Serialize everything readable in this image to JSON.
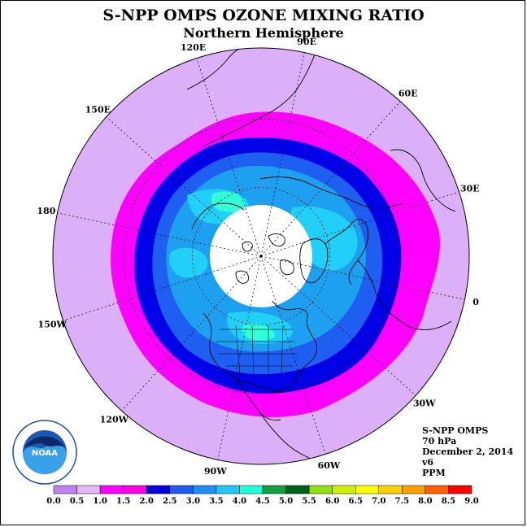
{
  "title": "S-NPP OMPS OZONE MIXING RATIO",
  "subtitle": "Northern Hemisphere",
  "longitude_labels": [
    {
      "text": "90E",
      "lon": 90
    },
    {
      "text": "60E",
      "lon": 60
    },
    {
      "text": "30E",
      "lon": 30
    },
    {
      "text": "0",
      "lon": 0
    },
    {
      "text": "30W",
      "lon": -30
    },
    {
      "text": "60W",
      "lon": -60
    },
    {
      "text": "90W",
      "lon": -90
    },
    {
      "text": "120W",
      "lon": -120
    },
    {
      "text": "150W",
      "lon": -150
    },
    {
      "text": "180",
      "lon": 180
    },
    {
      "text": "150E",
      "lon": 150
    },
    {
      "text": "120E",
      "lon": 120
    }
  ],
  "info": {
    "instrument": "S-NPP OMPS",
    "level": "70 hPa",
    "date": "December 2, 2014",
    "version": "v6",
    "units": "PPM"
  },
  "logo_text": "NOAA",
  "colorbar": {
    "ticks": [
      "0.0",
      "0.5",
      "1.0",
      "1.5",
      "2.0",
      "2.5",
      "3.0",
      "3.5",
      "4.0",
      "4.5",
      "5.0",
      "5.5",
      "6.0",
      "6.5",
      "7.0",
      "7.5",
      "8.0",
      "8.5",
      "9.0"
    ],
    "colors": [
      "#c080f0",
      "#e0b8f8",
      "#ff00ff",
      "#ff00e0",
      "#0000e0",
      "#1e5af0",
      "#1e90f0",
      "#20c8f8",
      "#20ffd8",
      "#10a040",
      "#006020",
      "#90e010",
      "#d0f000",
      "#ffff00",
      "#ffd000",
      "#ffa000",
      "#ff6000",
      "#ff0000",
      "#8b5a2b"
    ]
  },
  "map_colors": {
    "outer": "#dcb0f8",
    "magenta": "#ff00ff",
    "dark_blue": "#0000e8",
    "blue": "#1e5ef0",
    "light_blue": "#1ea0f0",
    "cyan": "#20d0f8",
    "aqua": "#30ffd8",
    "pole_hole": "#ffffff"
  }
}
